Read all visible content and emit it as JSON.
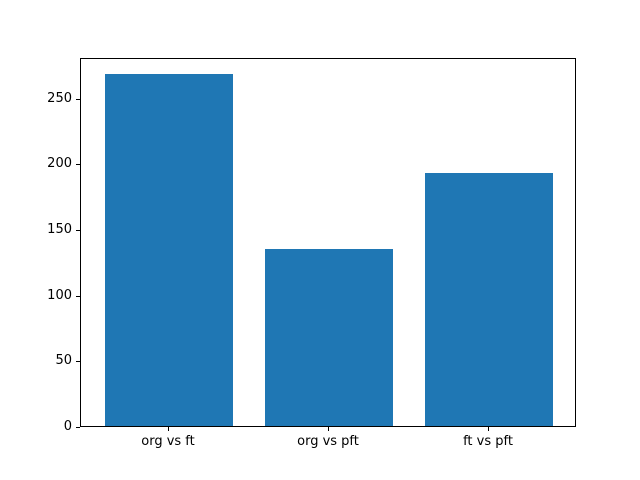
{
  "chart_data": {
    "type": "bar",
    "categories": [
      "org vs ft",
      "org vs pft",
      "ft vs pft"
    ],
    "values": [
      268,
      135,
      193
    ],
    "title": "",
    "xlabel": "",
    "ylabel": "",
    "ylim": [
      0,
      281
    ],
    "yticks": [
      0,
      50,
      100,
      150,
      200,
      250
    ],
    "bar_color": "#1f77b4",
    "background_color": "#ffffff",
    "grid": false,
    "legend_position": "none",
    "bar_width_fraction": 0.8
  }
}
